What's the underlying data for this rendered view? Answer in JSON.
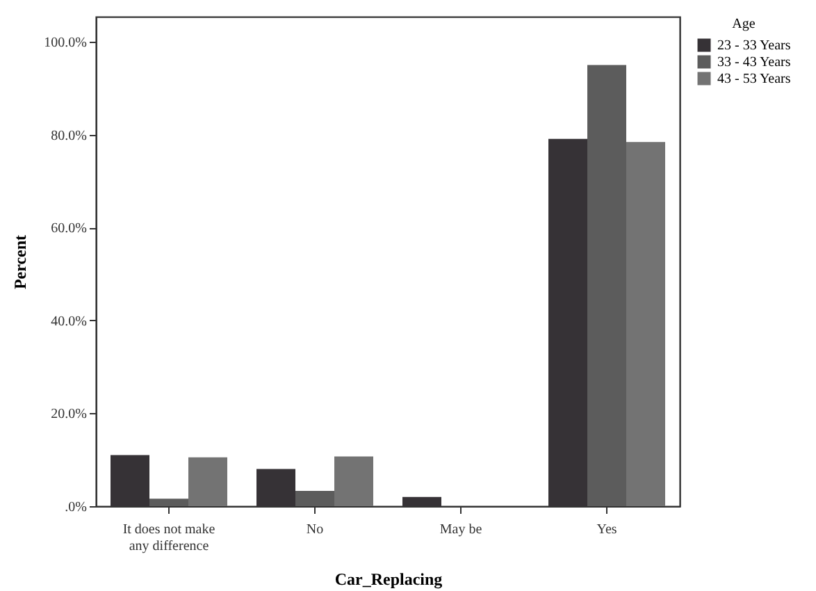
{
  "chart_data": {
    "type": "bar",
    "xlabel": "Car_Replacing",
    "ylabel": "Percent",
    "legend_title": "Age",
    "categories": [
      "It does not make any difference",
      "No",
      "May be",
      "Yes"
    ],
    "series": [
      {
        "name": "23 - 33 Years",
        "color": "#363236",
        "values": [
          11.0,
          8.0,
          2.0,
          79.1
        ]
      },
      {
        "name": "33 - 43 Years",
        "color": "#5c5c5c",
        "values": [
          1.6,
          3.3,
          0,
          95.0
        ]
      },
      {
        "name": "43 - 53 Years",
        "color": "#737373",
        "values": [
          10.5,
          10.7,
          0,
          78.4
        ]
      }
    ],
    "ylim": [
      0,
      105.4
    ],
    "yticks": [
      {
        "value": 0,
        "label": ".0%"
      },
      {
        "value": 20,
        "label": "20.0%"
      },
      {
        "value": 40,
        "label": "40.0%"
      },
      {
        "value": 60,
        "label": "60.0%"
      },
      {
        "value": 80,
        "label": "80.0%"
      },
      {
        "value": 100,
        "label": "100.0%"
      }
    ],
    "grid": false,
    "legend": "top right"
  }
}
